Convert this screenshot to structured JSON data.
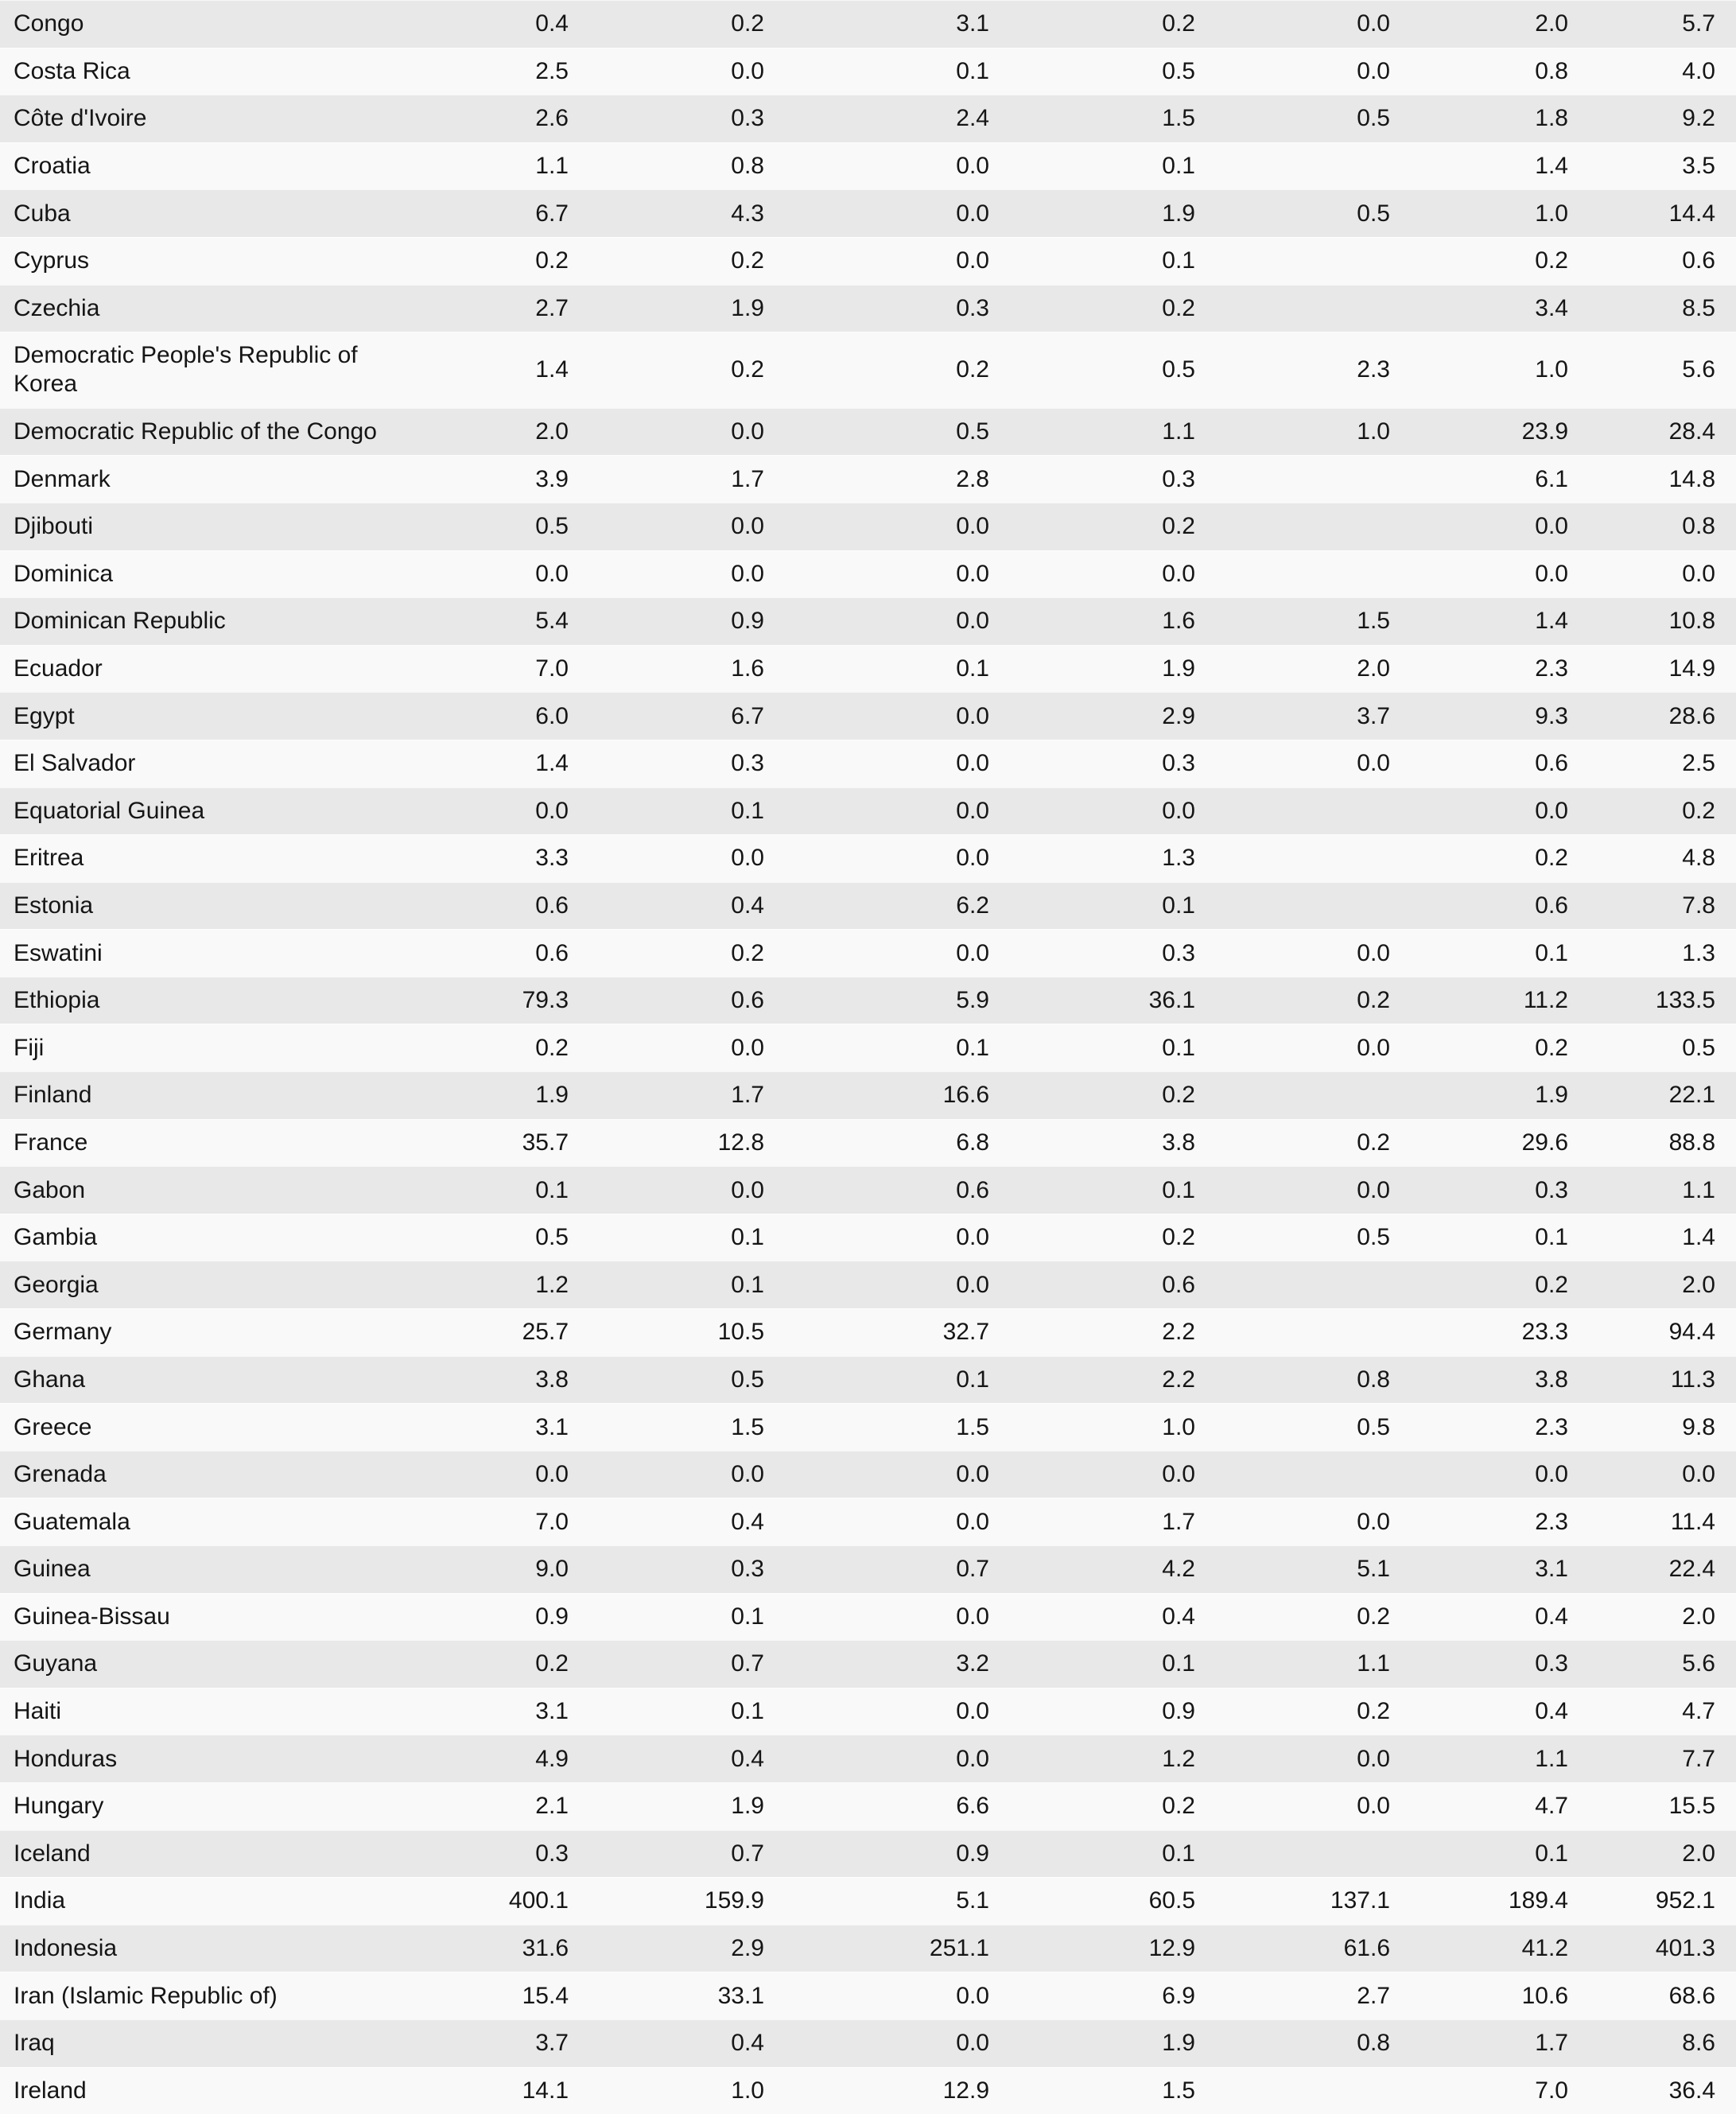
{
  "colors": {
    "row_stripe_dark": "#e8e8e8",
    "row_stripe_light": "#f9f9f9",
    "text": "#151515"
  },
  "table": {
    "rows": [
      {
        "country": "Congo",
        "values": [
          "0.4",
          "0.2",
          "3.1",
          "0.2",
          "0.0",
          "2.0",
          "5.7"
        ]
      },
      {
        "country": "Costa Rica",
        "values": [
          "2.5",
          "0.0",
          "0.1",
          "0.5",
          "0.0",
          "0.8",
          "4.0"
        ]
      },
      {
        "country": "Côte d'Ivoire",
        "values": [
          "2.6",
          "0.3",
          "2.4",
          "1.5",
          "0.5",
          "1.8",
          "9.2"
        ]
      },
      {
        "country": "Croatia",
        "values": [
          "1.1",
          "0.8",
          "0.0",
          "0.1",
          "",
          "1.4",
          "3.5"
        ]
      },
      {
        "country": "Cuba",
        "values": [
          "6.7",
          "4.3",
          "0.0",
          "1.9",
          "0.5",
          "1.0",
          "14.4"
        ]
      },
      {
        "country": "Cyprus",
        "values": [
          "0.2",
          "0.2",
          "0.0",
          "0.1",
          "",
          "0.2",
          "0.6"
        ]
      },
      {
        "country": "Czechia",
        "values": [
          "2.7",
          "1.9",
          "0.3",
          "0.2",
          "",
          "3.4",
          "8.5"
        ]
      },
      {
        "country": "Democratic People's Republic of Korea",
        "values": [
          "1.4",
          "0.2",
          "0.2",
          "0.5",
          "2.3",
          "1.0",
          "5.6"
        ]
      },
      {
        "country": "Democratic Republic of the Congo",
        "values": [
          "2.0",
          "0.0",
          "0.5",
          "1.1",
          "1.0",
          "23.9",
          "28.4"
        ]
      },
      {
        "country": "Denmark",
        "values": [
          "3.9",
          "1.7",
          "2.8",
          "0.3",
          "",
          "6.1",
          "14.8"
        ]
      },
      {
        "country": "Djibouti",
        "values": [
          "0.5",
          "0.0",
          "0.0",
          "0.2",
          "",
          "0.0",
          "0.8"
        ]
      },
      {
        "country": "Dominica",
        "values": [
          "0.0",
          "0.0",
          "0.0",
          "0.0",
          "",
          "0.0",
          "0.0"
        ]
      },
      {
        "country": "Dominican Republic",
        "values": [
          "5.4",
          "0.9",
          "0.0",
          "1.6",
          "1.5",
          "1.4",
          "10.8"
        ]
      },
      {
        "country": "Ecuador",
        "values": [
          "7.0",
          "1.6",
          "0.1",
          "1.9",
          "2.0",
          "2.3",
          "14.9"
        ]
      },
      {
        "country": "Egypt",
        "values": [
          "6.0",
          "6.7",
          "0.0",
          "2.9",
          "3.7",
          "9.3",
          "28.6"
        ]
      },
      {
        "country": "El Salvador",
        "values": [
          "1.4",
          "0.3",
          "0.0",
          "0.3",
          "0.0",
          "0.6",
          "2.5"
        ]
      },
      {
        "country": "Equatorial Guinea",
        "values": [
          "0.0",
          "0.1",
          "0.0",
          "0.0",
          "",
          "0.0",
          "0.2"
        ]
      },
      {
        "country": "Eritrea",
        "values": [
          "3.3",
          "0.0",
          "0.0",
          "1.3",
          "",
          "0.2",
          "4.8"
        ]
      },
      {
        "country": "Estonia",
        "values": [
          "0.6",
          "0.4",
          "6.2",
          "0.1",
          "",
          "0.6",
          "7.8"
        ]
      },
      {
        "country": "Eswatini",
        "values": [
          "0.6",
          "0.2",
          "0.0",
          "0.3",
          "0.0",
          "0.1",
          "1.3"
        ]
      },
      {
        "country": "Ethiopia",
        "values": [
          "79.3",
          "0.6",
          "5.9",
          "36.1",
          "0.2",
          "11.2",
          "133.5"
        ]
      },
      {
        "country": "Fiji",
        "values": [
          "0.2",
          "0.0",
          "0.1",
          "0.1",
          "0.0",
          "0.2",
          "0.5"
        ]
      },
      {
        "country": "Finland",
        "values": [
          "1.9",
          "1.7",
          "16.6",
          "0.2",
          "",
          "1.9",
          "22.1"
        ]
      },
      {
        "country": "France",
        "values": [
          "35.7",
          "12.8",
          "6.8",
          "3.8",
          "0.2",
          "29.6",
          "88.8"
        ]
      },
      {
        "country": "Gabon",
        "values": [
          "0.1",
          "0.0",
          "0.6",
          "0.1",
          "0.0",
          "0.3",
          "1.1"
        ]
      },
      {
        "country": "Gambia",
        "values": [
          "0.5",
          "0.1",
          "0.0",
          "0.2",
          "0.5",
          "0.1",
          "1.4"
        ]
      },
      {
        "country": "Georgia",
        "values": [
          "1.2",
          "0.1",
          "0.0",
          "0.6",
          "",
          "0.2",
          "2.0"
        ]
      },
      {
        "country": "Germany",
        "values": [
          "25.7",
          "10.5",
          "32.7",
          "2.2",
          "",
          "23.3",
          "94.4"
        ]
      },
      {
        "country": "Ghana",
        "values": [
          "3.8",
          "0.5",
          "0.1",
          "2.2",
          "0.8",
          "3.8",
          "11.3"
        ]
      },
      {
        "country": "Greece",
        "values": [
          "3.1",
          "1.5",
          "1.5",
          "1.0",
          "0.5",
          "2.3",
          "9.8"
        ]
      },
      {
        "country": "Grenada",
        "values": [
          "0.0",
          "0.0",
          "0.0",
          "0.0",
          "",
          "0.0",
          "0.0"
        ]
      },
      {
        "country": "Guatemala",
        "values": [
          "7.0",
          "0.4",
          "0.0",
          "1.7",
          "0.0",
          "2.3",
          "11.4"
        ]
      },
      {
        "country": "Guinea",
        "values": [
          "9.0",
          "0.3",
          "0.7",
          "4.2",
          "5.1",
          "3.1",
          "22.4"
        ]
      },
      {
        "country": "Guinea-Bissau",
        "values": [
          "0.9",
          "0.1",
          "0.0",
          "0.4",
          "0.2",
          "0.4",
          "2.0"
        ]
      },
      {
        "country": "Guyana",
        "values": [
          "0.2",
          "0.7",
          "3.2",
          "0.1",
          "1.1",
          "0.3",
          "5.6"
        ]
      },
      {
        "country": "Haiti",
        "values": [
          "3.1",
          "0.1",
          "0.0",
          "0.9",
          "0.2",
          "0.4",
          "4.7"
        ]
      },
      {
        "country": "Honduras",
        "values": [
          "4.9",
          "0.4",
          "0.0",
          "1.2",
          "0.0",
          "1.1",
          "7.7"
        ]
      },
      {
        "country": "Hungary",
        "values": [
          "2.1",
          "1.9",
          "6.6",
          "0.2",
          "0.0",
          "4.7",
          "15.5"
        ]
      },
      {
        "country": "Iceland",
        "values": [
          "0.3",
          "0.7",
          "0.9",
          "0.1",
          "",
          "0.1",
          "2.0"
        ]
      },
      {
        "country": "India",
        "values": [
          "400.1",
          "159.9",
          "5.1",
          "60.5",
          "137.1",
          "189.4",
          "952.1"
        ]
      },
      {
        "country": "Indonesia",
        "values": [
          "31.6",
          "2.9",
          "251.1",
          "12.9",
          "61.6",
          "41.2",
          "401.3"
        ]
      },
      {
        "country": "Iran (Islamic Republic of)",
        "values": [
          "15.4",
          "33.1",
          "0.0",
          "6.9",
          "2.7",
          "10.6",
          "68.6"
        ]
      },
      {
        "country": "Iraq",
        "values": [
          "3.7",
          "0.4",
          "0.0",
          "1.9",
          "0.8",
          "1.7",
          "8.6"
        ]
      },
      {
        "country": "Ireland",
        "values": [
          "14.1",
          "1.0",
          "12.9",
          "1.5",
          "",
          "7.0",
          "36.4"
        ]
      }
    ]
  }
}
